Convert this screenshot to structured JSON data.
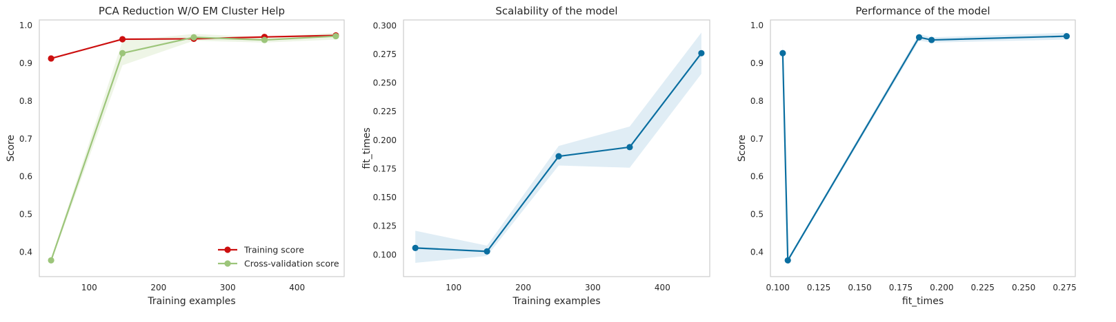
{
  "colors": {
    "train": "#cc0f0f",
    "cv": "#9cc57a",
    "blue": "#0a6ea0",
    "band_blue": "#d5e7f1",
    "band_train": "#f5d3d3",
    "band_cv": "#e8f1de",
    "frame": "#cccccc"
  },
  "chart_data": [
    {
      "type": "line",
      "title": "PCA Reduction W/O EM Cluster Help",
      "xlabel": "Training examples",
      "ylabel": "Score",
      "xlim": [
        28,
        468
      ],
      "ylim": [
        0.335,
        1.015
      ],
      "xticks": [
        100,
        200,
        300,
        400
      ],
      "yticks": [
        0.4,
        0.5,
        0.6,
        0.7,
        0.8,
        0.9,
        1.0
      ],
      "grid": false,
      "legend": {
        "position": "lower right",
        "entries": [
          "Training score",
          "Cross-validation score"
        ]
      },
      "x": [
        45,
        148,
        251,
        353,
        456
      ],
      "series": [
        {
          "name": "Training score",
          "color": "train",
          "values": [
            0.913,
            0.964,
            0.965,
            0.97,
            0.974
          ],
          "band_low": [
            0.913,
            0.962,
            0.963,
            0.968,
            0.972
          ],
          "band_high": [
            0.913,
            0.966,
            0.967,
            0.972,
            0.976
          ]
        },
        {
          "name": "Cross-validation score",
          "color": "cv",
          "values": [
            0.378,
            0.927,
            0.969,
            0.962,
            0.972
          ],
          "band_low": [
            0.373,
            0.895,
            0.96,
            0.955,
            0.963
          ],
          "band_high": [
            0.383,
            0.959,
            0.978,
            0.969,
            0.981
          ]
        }
      ]
    },
    {
      "type": "line",
      "title": "Scalability of the model",
      "xlabel": "Training examples",
      "ylabel": "fit_times",
      "xlim": [
        28,
        468
      ],
      "ylim": [
        0.081,
        0.305
      ],
      "xticks": [
        100,
        200,
        300,
        400
      ],
      "yticks": [
        0.1,
        0.125,
        0.15,
        0.175,
        0.2,
        0.225,
        0.25,
        0.275,
        0.3
      ],
      "grid": false,
      "x": [
        45,
        148,
        251,
        353,
        456
      ],
      "series": [
        {
          "color": "blue",
          "values": [
            0.106,
            0.103,
            0.186,
            0.194,
            0.276
          ],
          "band_low": [
            0.093,
            0.099,
            0.178,
            0.176,
            0.258
          ],
          "band_high": [
            0.121,
            0.108,
            0.195,
            0.212,
            0.294
          ]
        }
      ]
    },
    {
      "type": "line",
      "title": "Performance of the model",
      "xlabel": "fit_times",
      "ylabel": "Score",
      "xlim": [
        0.0955,
        0.2815
      ],
      "ylim": [
        0.335,
        1.015
      ],
      "xticks": [
        0.1,
        0.125,
        0.15,
        0.175,
        0.2,
        0.225,
        0.25,
        0.275
      ],
      "yticks": [
        0.4,
        0.5,
        0.6,
        0.7,
        0.8,
        0.9,
        1.0
      ],
      "grid": false,
      "x": [
        0.103,
        0.1061,
        0.1862,
        0.1938,
        0.2762
      ],
      "series": [
        {
          "color": "blue",
          "values": [
            0.927,
            0.378,
            0.969,
            0.962,
            0.972
          ],
          "band_low": [
            0.895,
            0.373,
            0.96,
            0.955,
            0.963
          ],
          "band_high": [
            0.959,
            0.383,
            0.978,
            0.969,
            0.981
          ]
        }
      ]
    }
  ]
}
